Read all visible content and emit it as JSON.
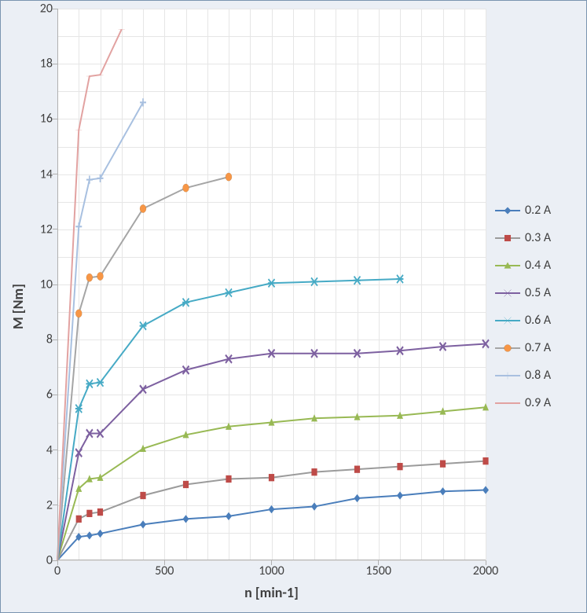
{
  "chart": {
    "type": "line-scatter",
    "background_color": "#ebeff5",
    "plot_background": "#ffffff",
    "grid_color": "#e6e6e6",
    "axis_color": "#b0b0b0",
    "border_color": "#7a94b0",
    "xlabel": "n [min-1]",
    "ylabel": "M [Nm]",
    "label_fontsize": 18,
    "tick_fontsize": 16,
    "xlim": [
      0,
      2000
    ],
    "ylim": [
      0,
      20
    ],
    "xtick_step_major": 500,
    "xtick_step_minor": 100,
    "ytick_step_major": 2,
    "ytick_step_minor": 1,
    "xticks": [
      0,
      500,
      1000,
      1500,
      2000
    ],
    "yticks": [
      0,
      2,
      4,
      6,
      8,
      10,
      12,
      14,
      16,
      18,
      20
    ],
    "line_width": 2,
    "marker_size": 8,
    "series": [
      {
        "label": "0.2 A",
        "color": "#4a7ebb",
        "marker": "diamond",
        "marker_fill": "#4a7ebb",
        "x": [
          0,
          100,
          150,
          200,
          400,
          600,
          800,
          1000,
          1200,
          1400,
          1600,
          1800,
          2000
        ],
        "y": [
          0,
          0.85,
          0.9,
          0.97,
          1.3,
          1.5,
          1.6,
          1.85,
          1.95,
          2.25,
          2.35,
          2.5,
          2.55
        ]
      },
      {
        "label": "0.3 A",
        "color": "#9b9b9b",
        "marker": "square",
        "marker_fill": "#be4b48",
        "x": [
          0,
          100,
          150,
          200,
          400,
          600,
          800,
          1000,
          1200,
          1400,
          1600,
          1800,
          2000
        ],
        "y": [
          0,
          1.5,
          1.7,
          1.75,
          2.35,
          2.75,
          2.95,
          3.0,
          3.2,
          3.3,
          3.4,
          3.5,
          3.6
        ]
      },
      {
        "label": "0.4 A",
        "color": "#98b954",
        "marker": "triangle",
        "marker_fill": "#98b954",
        "x": [
          0,
          100,
          150,
          200,
          400,
          600,
          800,
          1000,
          1200,
          1400,
          1600,
          1800,
          2000
        ],
        "y": [
          0,
          2.6,
          2.95,
          3.0,
          4.05,
          4.55,
          4.85,
          5.0,
          5.15,
          5.2,
          5.25,
          5.4,
          5.55
        ]
      },
      {
        "label": "0.5 A",
        "color": "#7d60a0",
        "marker": "x",
        "marker_fill": "#7d60a0",
        "x": [
          0,
          100,
          150,
          200,
          400,
          600,
          800,
          1000,
          1200,
          1400,
          1600,
          1800,
          2000
        ],
        "y": [
          0,
          3.9,
          4.6,
          4.6,
          6.2,
          6.9,
          7.3,
          7.5,
          7.5,
          7.5,
          7.6,
          7.75,
          7.85
        ]
      },
      {
        "label": "0.6 A",
        "color": "#46aac5",
        "marker": "star",
        "marker_fill": "#46aac5",
        "x": [
          0,
          100,
          150,
          200,
          400,
          600,
          800,
          1000,
          1200,
          1400,
          1600
        ],
        "y": [
          0,
          5.5,
          6.4,
          6.45,
          8.5,
          9.35,
          9.7,
          10.05,
          10.1,
          10.15,
          10.2
        ]
      },
      {
        "label": "0.7 A",
        "color": "#a5a5a5",
        "marker": "circle",
        "marker_fill": "#f79646",
        "x": [
          0,
          100,
          150,
          200,
          400,
          600,
          800
        ],
        "y": [
          0,
          8.95,
          10.25,
          10.3,
          12.75,
          13.5,
          13.9
        ]
      },
      {
        "label": "0.8 A",
        "color": "#a8c0e0",
        "marker": "plus",
        "marker_fill": "#a8c0e0",
        "x": [
          0,
          100,
          150,
          200,
          400
        ],
        "y": [
          0,
          12.1,
          13.8,
          13.85,
          16.6
        ]
      },
      {
        "label": "0.9 A",
        "color": "#e2a2a1",
        "marker": "dash",
        "marker_fill": "#e2a2a1",
        "x": [
          0,
          100,
          150,
          200,
          300
        ],
        "y": [
          0,
          15.6,
          17.55,
          17.6,
          19.25
        ]
      }
    ]
  }
}
